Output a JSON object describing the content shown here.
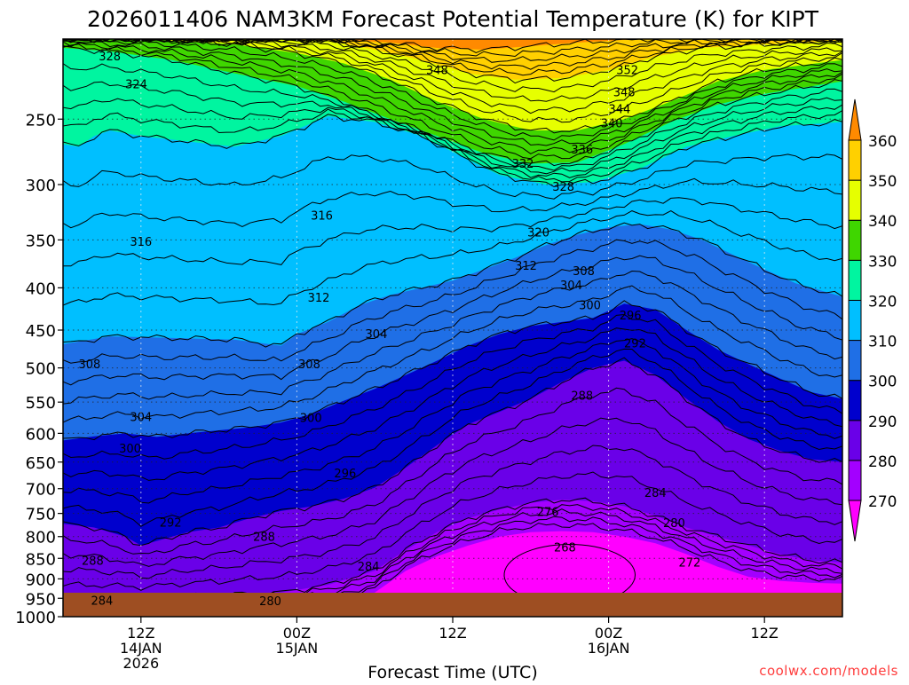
{
  "chart_data": {
    "type": "heatmap",
    "title": "2026011406 NAM3KM Forecast Potential Temperature (K) for KIPT",
    "xlabel": "Forecast Time (UTC)",
    "ylabel": "",
    "credit": "coolwx.com/models",
    "x_ticks": [
      {
        "line1": "12Z",
        "line2": "14JAN",
        "line3": "2026"
      },
      {
        "line1": "00Z",
        "line2": "15JAN",
        "line3": ""
      },
      {
        "line1": "12Z",
        "line2": "",
        "line3": ""
      },
      {
        "line1": "00Z",
        "line2": "16JAN",
        "line3": ""
      },
      {
        "line1": "12Z",
        "line2": "",
        "line3": ""
      }
    ],
    "x_range_hours": [
      7,
      57
    ],
    "x_tick_hours": [
      12,
      22,
      32,
      42,
      52
    ],
    "y_scale": "log",
    "y_range_hpa": [
      1000,
      200
    ],
    "y_ticks": [
      "250",
      "300",
      "350",
      "400",
      "450",
      "500",
      "550",
      "600",
      "650",
      "700",
      "750",
      "800",
      "850",
      "900",
      "950",
      "1000"
    ],
    "colorbar": {
      "levels": [
        "270",
        "280",
        "290",
        "300",
        "310",
        "320",
        "330",
        "340",
        "350",
        "360"
      ],
      "colors": [
        "#ff00ff",
        "#a300ff",
        "#6a00e8",
        "#0000cd",
        "#1f6fe6",
        "#00bfff",
        "#00f5a0",
        "#3fd600",
        "#e6ff00",
        "#ffd000",
        "#ff8a00"
      ]
    },
    "contour_labels": [
      {
        "text": "328",
        "t": 10.0,
        "p": 210
      },
      {
        "text": "324",
        "t": 11.7,
        "p": 227
      },
      {
        "text": "348",
        "t": 31.0,
        "p": 218
      },
      {
        "text": "352",
        "t": 43.2,
        "p": 218
      },
      {
        "text": "348",
        "t": 43.0,
        "p": 232
      },
      {
        "text": "344",
        "t": 42.7,
        "p": 243
      },
      {
        "text": "340",
        "t": 42.2,
        "p": 253
      },
      {
        "text": "336",
        "t": 40.3,
        "p": 272
      },
      {
        "text": "332",
        "t": 36.5,
        "p": 283
      },
      {
        "text": "328",
        "t": 39.1,
        "p": 302
      },
      {
        "text": "316",
        "t": 23.6,
        "p": 327
      },
      {
        "text": "316",
        "t": 12.0,
        "p": 352
      },
      {
        "text": "320",
        "t": 37.5,
        "p": 343
      },
      {
        "text": "312",
        "t": 36.7,
        "p": 376
      },
      {
        "text": "308",
        "t": 40.4,
        "p": 382
      },
      {
        "text": "304",
        "t": 39.6,
        "p": 397
      },
      {
        "text": "312",
        "t": 23.4,
        "p": 411
      },
      {
        "text": "300",
        "t": 40.8,
        "p": 420
      },
      {
        "text": "296",
        "t": 43.4,
        "p": 432
      },
      {
        "text": "304",
        "t": 27.1,
        "p": 455
      },
      {
        "text": "292",
        "t": 43.7,
        "p": 467
      },
      {
        "text": "308",
        "t": 8.7,
        "p": 495
      },
      {
        "text": "308",
        "t": 22.8,
        "p": 495
      },
      {
        "text": "288",
        "t": 40.3,
        "p": 540
      },
      {
        "text": "304",
        "t": 12.0,
        "p": 573
      },
      {
        "text": "300",
        "t": 22.9,
        "p": 575
      },
      {
        "text": "300",
        "t": 11.3,
        "p": 626
      },
      {
        "text": "296",
        "t": 25.1,
        "p": 671
      },
      {
        "text": "284",
        "t": 45.0,
        "p": 708
      },
      {
        "text": "276",
        "t": 38.1,
        "p": 747
      },
      {
        "text": "292",
        "t": 13.9,
        "p": 769
      },
      {
        "text": "280",
        "t": 46.2,
        "p": 770
      },
      {
        "text": "288",
        "t": 19.9,
        "p": 801
      },
      {
        "text": "268",
        "t": 39.2,
        "p": 825
      },
      {
        "text": "288",
        "t": 8.9,
        "p": 856
      },
      {
        "text": "272",
        "t": 47.2,
        "p": 860
      },
      {
        "text": "284",
        "t": 26.6,
        "p": 870
      },
      {
        "text": "284",
        "t": 9.5,
        "p": 957
      },
      {
        "text": "280",
        "t": 20.3,
        "p": 958
      }
    ]
  }
}
